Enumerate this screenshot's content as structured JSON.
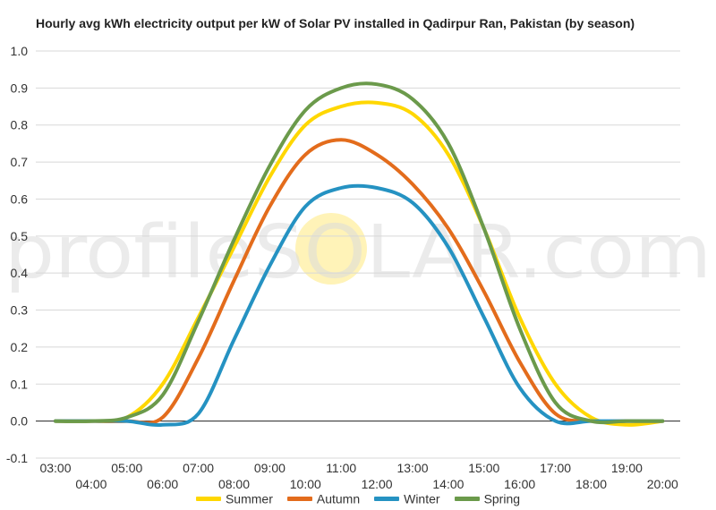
{
  "chart_data": {
    "type": "line",
    "title": "Hourly avg kWh electricity output per kW of Solar PV installed in Qadirpur Ran, Pakistan (by season)",
    "xlabel": "",
    "ylabel": "",
    "x": [
      "03:00",
      "04:00",
      "05:00",
      "06:00",
      "07:00",
      "08:00",
      "09:00",
      "10:00",
      "11:00",
      "12:00",
      "13:00",
      "14:00",
      "15:00",
      "16:00",
      "17:00",
      "18:00",
      "19:00",
      "20:00"
    ],
    "ylim": [
      -0.1,
      1.0
    ],
    "y_ticks": [
      "1.0",
      "0.9",
      "0.8",
      "0.7",
      "0.6",
      "0.5",
      "0.4",
      "0.3",
      "0.2",
      "0.1",
      "0.0",
      "-0.1"
    ],
    "grid": true,
    "legend_position": "bottom",
    "series": [
      {
        "name": "Summer",
        "color": "#FFD700",
        "values": [
          0.0,
          0.0,
          0.01,
          0.1,
          0.28,
          0.47,
          0.66,
          0.8,
          0.85,
          0.86,
          0.83,
          0.72,
          0.52,
          0.28,
          0.1,
          0.01,
          -0.01,
          0.0
        ]
      },
      {
        "name": "Autumn",
        "color": "#E36C1C",
        "values": [
          0.0,
          0.0,
          0.0,
          0.01,
          0.17,
          0.38,
          0.58,
          0.72,
          0.76,
          0.72,
          0.64,
          0.52,
          0.35,
          0.16,
          0.02,
          0.0,
          0.0,
          0.0
        ]
      },
      {
        "name": "Winter",
        "color": "#2592C2",
        "values": [
          0.0,
          0.0,
          0.0,
          -0.01,
          0.02,
          0.22,
          0.42,
          0.58,
          0.63,
          0.63,
          0.59,
          0.47,
          0.28,
          0.09,
          0.0,
          0.0,
          0.0,
          0.0
        ]
      },
      {
        "name": "Spring",
        "color": "#6B9A4B",
        "values": [
          0.0,
          0.0,
          0.01,
          0.07,
          0.27,
          0.49,
          0.69,
          0.84,
          0.9,
          0.91,
          0.87,
          0.75,
          0.52,
          0.25,
          0.05,
          0.0,
          0.0,
          0.0
        ]
      }
    ]
  },
  "watermark": {
    "text": "profileSOLAR.com",
    "sun_color": "#FFF3B8"
  }
}
